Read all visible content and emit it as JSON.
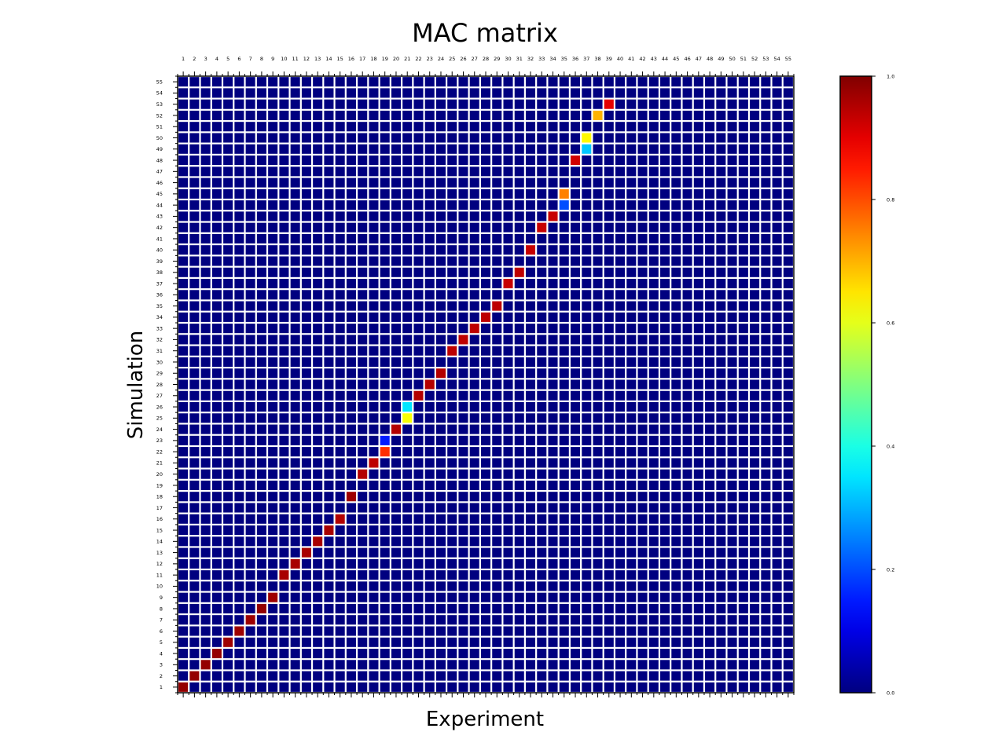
{
  "chart_data": {
    "type": "heatmap",
    "title": "MAC matrix",
    "xlabel": "Experiment",
    "ylabel": "Simulation",
    "n_cols": 55,
    "n_rows": 55,
    "x_ticks": [
      "1",
      "2",
      "3",
      "4",
      "5",
      "6",
      "7",
      "8",
      "9",
      "10",
      "11",
      "12",
      "13",
      "14",
      "15",
      "16",
      "17",
      "18",
      "19",
      "20",
      "21",
      "22",
      "23",
      "24",
      "25",
      "26",
      "27",
      "28",
      "29",
      "30",
      "31",
      "32",
      "33",
      "34",
      "35",
      "36",
      "37",
      "38",
      "39",
      "40",
      "41",
      "42",
      "43",
      "44",
      "45",
      "46",
      "47",
      "48",
      "49",
      "50",
      "51",
      "52",
      "53",
      "54",
      "55"
    ],
    "y_ticks": [
      "1",
      "2",
      "3",
      "4",
      "5",
      "6",
      "7",
      "8",
      "9",
      "10",
      "11",
      "12",
      "13",
      "14",
      "15",
      "16",
      "17",
      "18",
      "19",
      "20",
      "21",
      "22",
      "23",
      "24",
      "25",
      "26",
      "27",
      "28",
      "29",
      "30",
      "31",
      "32",
      "33",
      "34",
      "35",
      "36",
      "37",
      "38",
      "39",
      "40",
      "41",
      "42",
      "43",
      "44",
      "45",
      "46",
      "47",
      "48",
      "49",
      "50",
      "51",
      "52",
      "53",
      "54",
      "55"
    ],
    "background_value": 0.0,
    "cells": [
      {
        "experiment": 1,
        "simulation": 1,
        "value": 0.98
      },
      {
        "experiment": 2,
        "simulation": 2,
        "value": 0.98
      },
      {
        "experiment": 3,
        "simulation": 3,
        "value": 0.98
      },
      {
        "experiment": 4,
        "simulation": 4,
        "value": 0.98
      },
      {
        "experiment": 5,
        "simulation": 5,
        "value": 0.97
      },
      {
        "experiment": 6,
        "simulation": 6,
        "value": 0.97
      },
      {
        "experiment": 7,
        "simulation": 7,
        "value": 0.97
      },
      {
        "experiment": 8,
        "simulation": 8,
        "value": 0.98
      },
      {
        "experiment": 9,
        "simulation": 9,
        "value": 0.97
      },
      {
        "experiment": 10,
        "simulation": 11,
        "value": 0.96
      },
      {
        "experiment": 11,
        "simulation": 12,
        "value": 0.96
      },
      {
        "experiment": 12,
        "simulation": 13,
        "value": 0.96
      },
      {
        "experiment": 13,
        "simulation": 14,
        "value": 0.96
      },
      {
        "experiment": 14,
        "simulation": 15,
        "value": 0.96
      },
      {
        "experiment": 15,
        "simulation": 16,
        "value": 0.95
      },
      {
        "experiment": 16,
        "simulation": 18,
        "value": 0.97
      },
      {
        "experiment": 17,
        "simulation": 20,
        "value": 0.95
      },
      {
        "experiment": 18,
        "simulation": 21,
        "value": 0.94
      },
      {
        "experiment": 19,
        "simulation": 22,
        "value": 0.83
      },
      {
        "experiment": 19,
        "simulation": 23,
        "value": 0.15
      },
      {
        "experiment": 20,
        "simulation": 24,
        "value": 0.95
      },
      {
        "experiment": 21,
        "simulation": 25,
        "value": 0.62
      },
      {
        "experiment": 21,
        "simulation": 26,
        "value": 0.35
      },
      {
        "experiment": 22,
        "simulation": 27,
        "value": 0.95
      },
      {
        "experiment": 23,
        "simulation": 28,
        "value": 0.95
      },
      {
        "experiment": 24,
        "simulation": 29,
        "value": 0.95
      },
      {
        "experiment": 25,
        "simulation": 31,
        "value": 0.94
      },
      {
        "experiment": 26,
        "simulation": 32,
        "value": 0.94
      },
      {
        "experiment": 27,
        "simulation": 33,
        "value": 0.94
      },
      {
        "experiment": 28,
        "simulation": 34,
        "value": 0.94
      },
      {
        "experiment": 29,
        "simulation": 35,
        "value": 0.94
      },
      {
        "experiment": 30,
        "simulation": 37,
        "value": 0.93
      },
      {
        "experiment": 31,
        "simulation": 38,
        "value": 0.94
      },
      {
        "experiment": 32,
        "simulation": 40,
        "value": 0.93
      },
      {
        "experiment": 33,
        "simulation": 42,
        "value": 0.93
      },
      {
        "experiment": 34,
        "simulation": 43,
        "value": 0.93
      },
      {
        "experiment": 35,
        "simulation": 44,
        "value": 0.2
      },
      {
        "experiment": 35,
        "simulation": 45,
        "value": 0.75
      },
      {
        "experiment": 36,
        "simulation": 48,
        "value": 0.92
      },
      {
        "experiment": 37,
        "simulation": 49,
        "value": 0.32
      },
      {
        "experiment": 37,
        "simulation": 50,
        "value": 0.63
      },
      {
        "experiment": 38,
        "simulation": 52,
        "value": 0.7
      },
      {
        "experiment": 39,
        "simulation": 53,
        "value": 0.9
      }
    ],
    "colormap": "jet",
    "colorbar": {
      "range": [
        0.0,
        1.0
      ],
      "ticks": [
        "0.0",
        "0.2",
        "0.4",
        "0.6",
        "0.8",
        "1.0"
      ]
    },
    "grid": true,
    "grid_color": "#ffffff"
  }
}
